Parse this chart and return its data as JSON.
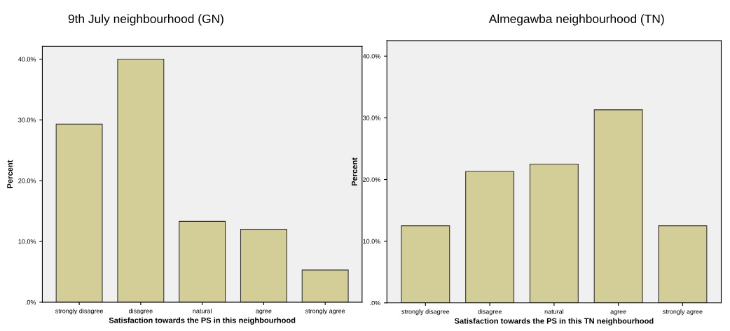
{
  "chart_data": [
    {
      "type": "bar",
      "title": "9th July neighbourhood (GN)",
      "xlabel": "Satisfaction towards the PS in this neighbourhood",
      "ylabel": "Percent",
      "categories": [
        "strongly disagree",
        "disagree",
        "natural",
        "agree",
        "strongly agree"
      ],
      "values": [
        29.3,
        40.0,
        13.3,
        12.0,
        5.3
      ],
      "color": "#d3ce97",
      "ylim": [
        0,
        42.1
      ],
      "yticks": [
        {
          "value": 0,
          "label": ".0%"
        },
        {
          "value": 10,
          "label": "10.0%"
        },
        {
          "value": 20,
          "label": "20.0%"
        },
        {
          "value": 30,
          "label": "30.0%"
        },
        {
          "value": 40,
          "label": "40.0%"
        }
      ],
      "grid": false
    },
    {
      "type": "bar",
      "title": "Almegawba neighbourhood (TN)",
      "xlabel": "Satisfaction towards the PS in this TN neighbourhood",
      "ylabel": "Percent",
      "categories": [
        "strongly disagree",
        "disagree",
        "natural",
        "agree",
        "strongly agree"
      ],
      "values": [
        12.5,
        21.3,
        22.5,
        31.3,
        12.5
      ],
      "color": "#d3ce97",
      "ylim": [
        0,
        42.5
      ],
      "yticks": [
        {
          "value": 0,
          "label": ".0%"
        },
        {
          "value": 10,
          "label": "10.0%"
        },
        {
          "value": 20,
          "label": "20.0%"
        },
        {
          "value": 30,
          "label": "30.0%"
        },
        {
          "value": 40,
          "label": "40.0%"
        }
      ],
      "grid": false
    }
  ]
}
